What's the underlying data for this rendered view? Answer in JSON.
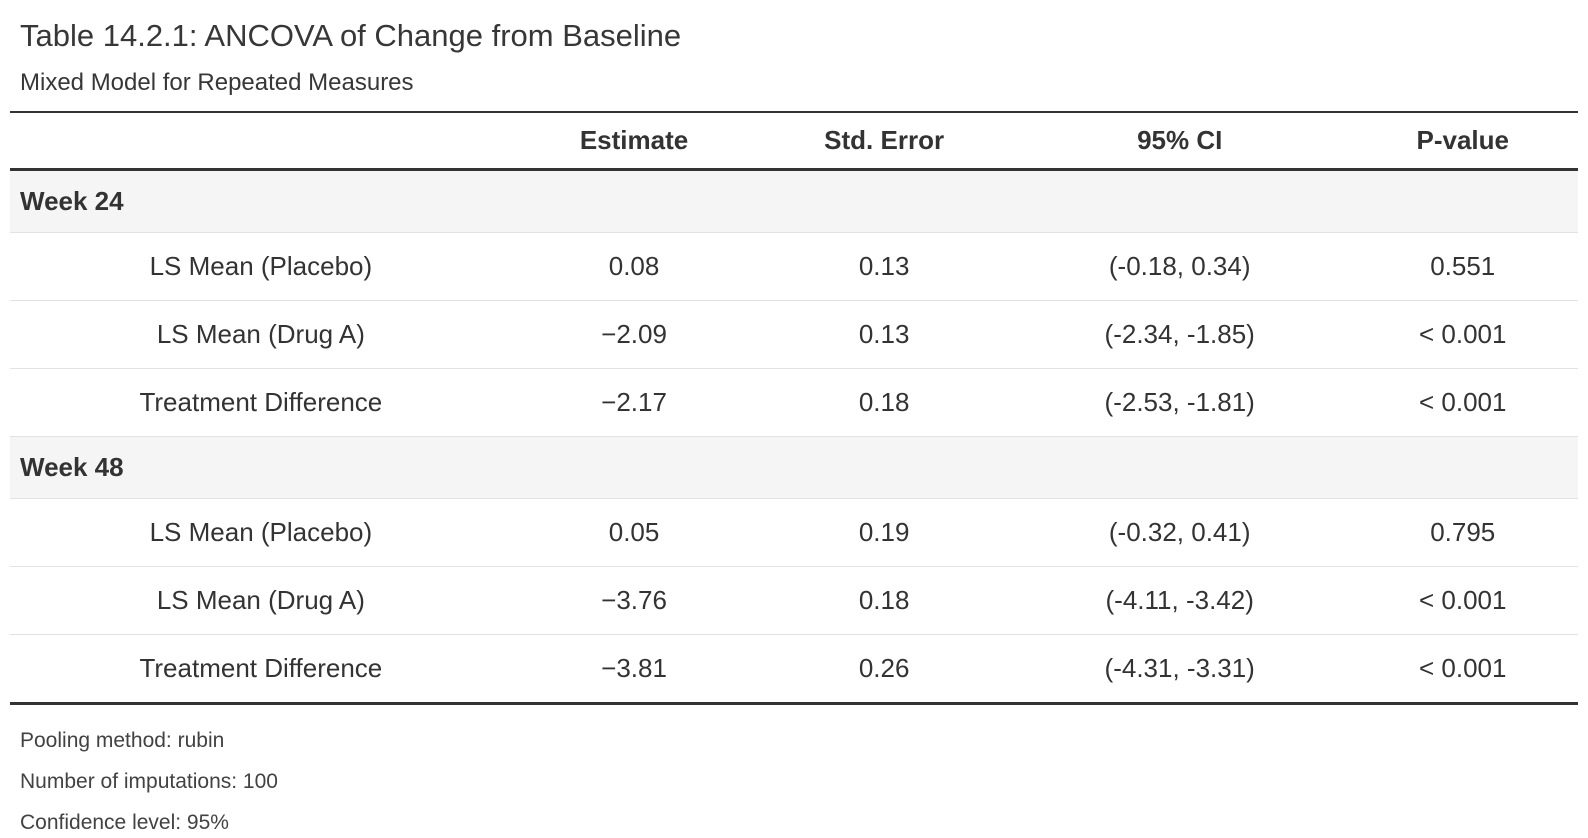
{
  "heading": {
    "title": "Table 14.2.1: ANCOVA of Change from Baseline",
    "subtitle": "Mixed Model for Repeated Measures"
  },
  "table": {
    "columns": {
      "stub": "",
      "estimate": "Estimate",
      "std_error": "Std. Error",
      "ci_95": "95% CI",
      "p_value": "P-value"
    },
    "rows": [
      {
        "type": "group",
        "label": "Week 24"
      },
      {
        "type": "data",
        "label": "LS Mean (Placebo)",
        "estimate": "0.08",
        "std_error": "0.13",
        "ci_95": "(-0.18, 0.34)",
        "p_value": "0.551"
      },
      {
        "type": "data",
        "label": "LS Mean (Drug A)",
        "estimate": "−2.09",
        "std_error": "0.13",
        "ci_95": "(-2.34, -1.85)",
        "p_value": "< 0.001"
      },
      {
        "type": "data",
        "label": "Treatment Difference",
        "estimate": "−2.17",
        "std_error": "0.18",
        "ci_95": "(-2.53, -1.81)",
        "p_value": "< 0.001"
      },
      {
        "type": "group",
        "label": "Week 48"
      },
      {
        "type": "data",
        "label": "LS Mean (Placebo)",
        "estimate": "0.05",
        "std_error": "0.19",
        "ci_95": "(-0.32, 0.41)",
        "p_value": "0.795"
      },
      {
        "type": "data",
        "label": "LS Mean (Drug A)",
        "estimate": "−3.76",
        "std_error": "0.18",
        "ci_95": "(-4.11, -3.42)",
        "p_value": "< 0.001"
      },
      {
        "type": "data",
        "label": "Treatment Difference",
        "estimate": "−3.81",
        "std_error": "0.26",
        "ci_95": "(-4.31, -3.31)",
        "p_value": "< 0.001"
      }
    ]
  },
  "footnotes": [
    "Pooling method: rubin",
    "Number of imputations: 100",
    "Confidence level: 95%"
  ],
  "colors": {
    "thick_border": "#333333",
    "thin_border": "#e2e2e2",
    "group_row_bg": "#f5f5f6",
    "text": "#333333",
    "title_text": "#373737",
    "footnote_text": "#424242",
    "background": "#ffffff"
  }
}
